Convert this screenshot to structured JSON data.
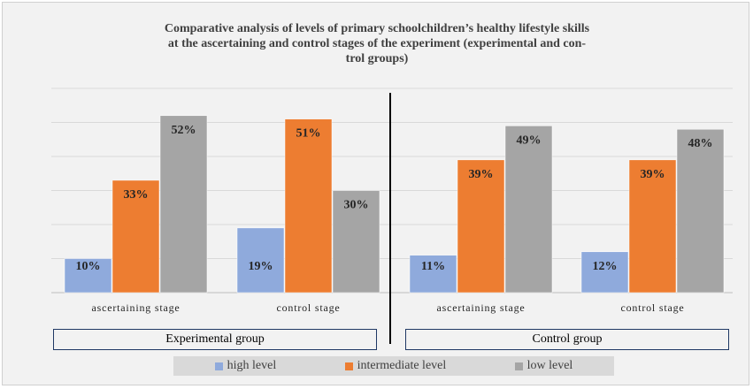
{
  "chart_data": {
    "type": "bar",
    "title_lines": [
      "Comparative analysis of levels of primary schoolchildren’s healthy lifestyle skills",
      "at the ascertaining and control stages of the experiment (experimental and con-",
      "trol groups)"
    ],
    "categories": [
      "ascertaining stage",
      "control stage",
      "ascertaining stage",
      "control stage"
    ],
    "groups": [
      "Experimental group",
      "Control  group"
    ],
    "series": [
      {
        "name": "high level",
        "color": "#8faadc",
        "values": [
          10,
          19,
          11,
          12
        ],
        "labels": [
          "10%",
          "19%",
          "11%",
          "12%"
        ]
      },
      {
        "name": "intermediate level",
        "color": "#ed7d31",
        "values": [
          33,
          51,
          39,
          39
        ],
        "labels": [
          "33%",
          "51%",
          "39%",
          "39%"
        ]
      },
      {
        "name": "low level",
        "color": "#a5a5a5",
        "values": [
          52,
          30,
          49,
          48
        ],
        "labels": [
          "52%",
          "30%",
          "49%",
          "48%"
        ]
      }
    ],
    "ylim": [
      0,
      60
    ],
    "grid": true,
    "legend_position": "bottom"
  }
}
